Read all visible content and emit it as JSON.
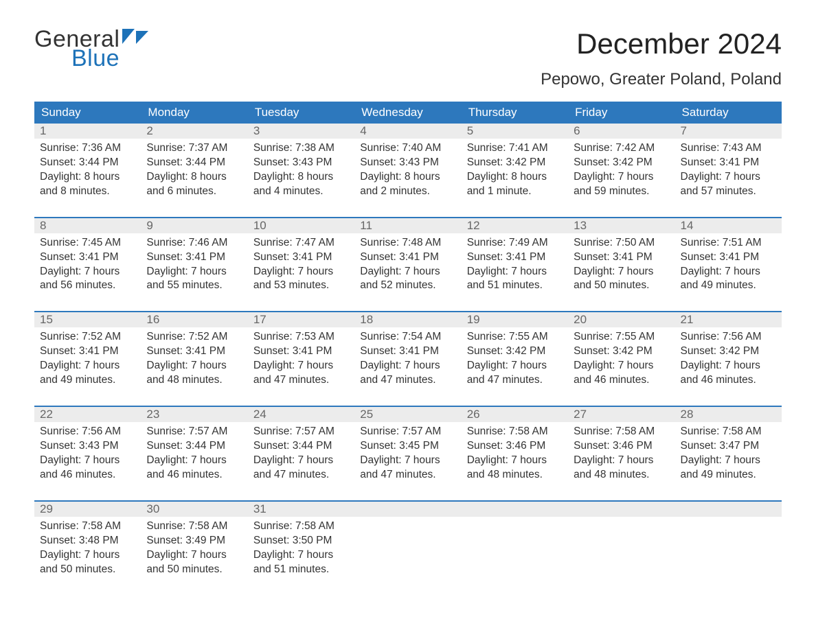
{
  "logo": {
    "text_general": "General",
    "text_blue": "Blue",
    "shape_color": "#1d72b8"
  },
  "title": "December 2024",
  "location": "Pepowo, Greater Poland, Poland",
  "colors": {
    "header_bg": "#2d78bd",
    "header_text": "#ffffff",
    "week_rule": "#2d78bd",
    "daynum_bg": "#ececec",
    "daynum_text": "#666666",
    "body_text": "#333333",
    "page_bg": "#ffffff"
  },
  "typography": {
    "title_fontsize": 42,
    "location_fontsize": 24,
    "dow_fontsize": 17,
    "daynum_fontsize": 17,
    "body_fontsize": 15.5
  },
  "days_of_week": [
    "Sunday",
    "Monday",
    "Tuesday",
    "Wednesday",
    "Thursday",
    "Friday",
    "Saturday"
  ],
  "weeks": [
    [
      {
        "n": "1",
        "sr": "Sunrise: 7:36 AM",
        "ss": "Sunset: 3:44 PM",
        "d1": "Daylight: 8 hours",
        "d2": "and 8 minutes."
      },
      {
        "n": "2",
        "sr": "Sunrise: 7:37 AM",
        "ss": "Sunset: 3:44 PM",
        "d1": "Daylight: 8 hours",
        "d2": "and 6 minutes."
      },
      {
        "n": "3",
        "sr": "Sunrise: 7:38 AM",
        "ss": "Sunset: 3:43 PM",
        "d1": "Daylight: 8 hours",
        "d2": "and 4 minutes."
      },
      {
        "n": "4",
        "sr": "Sunrise: 7:40 AM",
        "ss": "Sunset: 3:43 PM",
        "d1": "Daylight: 8 hours",
        "d2": "and 2 minutes."
      },
      {
        "n": "5",
        "sr": "Sunrise: 7:41 AM",
        "ss": "Sunset: 3:42 PM",
        "d1": "Daylight: 8 hours",
        "d2": "and 1 minute."
      },
      {
        "n": "6",
        "sr": "Sunrise: 7:42 AM",
        "ss": "Sunset: 3:42 PM",
        "d1": "Daylight: 7 hours",
        "d2": "and 59 minutes."
      },
      {
        "n": "7",
        "sr": "Sunrise: 7:43 AM",
        "ss": "Sunset: 3:41 PM",
        "d1": "Daylight: 7 hours",
        "d2": "and 57 minutes."
      }
    ],
    [
      {
        "n": "8",
        "sr": "Sunrise: 7:45 AM",
        "ss": "Sunset: 3:41 PM",
        "d1": "Daylight: 7 hours",
        "d2": "and 56 minutes."
      },
      {
        "n": "9",
        "sr": "Sunrise: 7:46 AM",
        "ss": "Sunset: 3:41 PM",
        "d1": "Daylight: 7 hours",
        "d2": "and 55 minutes."
      },
      {
        "n": "10",
        "sr": "Sunrise: 7:47 AM",
        "ss": "Sunset: 3:41 PM",
        "d1": "Daylight: 7 hours",
        "d2": "and 53 minutes."
      },
      {
        "n": "11",
        "sr": "Sunrise: 7:48 AM",
        "ss": "Sunset: 3:41 PM",
        "d1": "Daylight: 7 hours",
        "d2": "and 52 minutes."
      },
      {
        "n": "12",
        "sr": "Sunrise: 7:49 AM",
        "ss": "Sunset: 3:41 PM",
        "d1": "Daylight: 7 hours",
        "d2": "and 51 minutes."
      },
      {
        "n": "13",
        "sr": "Sunrise: 7:50 AM",
        "ss": "Sunset: 3:41 PM",
        "d1": "Daylight: 7 hours",
        "d2": "and 50 minutes."
      },
      {
        "n": "14",
        "sr": "Sunrise: 7:51 AM",
        "ss": "Sunset: 3:41 PM",
        "d1": "Daylight: 7 hours",
        "d2": "and 49 minutes."
      }
    ],
    [
      {
        "n": "15",
        "sr": "Sunrise: 7:52 AM",
        "ss": "Sunset: 3:41 PM",
        "d1": "Daylight: 7 hours",
        "d2": "and 49 minutes."
      },
      {
        "n": "16",
        "sr": "Sunrise: 7:52 AM",
        "ss": "Sunset: 3:41 PM",
        "d1": "Daylight: 7 hours",
        "d2": "and 48 minutes."
      },
      {
        "n": "17",
        "sr": "Sunrise: 7:53 AM",
        "ss": "Sunset: 3:41 PM",
        "d1": "Daylight: 7 hours",
        "d2": "and 47 minutes."
      },
      {
        "n": "18",
        "sr": "Sunrise: 7:54 AM",
        "ss": "Sunset: 3:41 PM",
        "d1": "Daylight: 7 hours",
        "d2": "and 47 minutes."
      },
      {
        "n": "19",
        "sr": "Sunrise: 7:55 AM",
        "ss": "Sunset: 3:42 PM",
        "d1": "Daylight: 7 hours",
        "d2": "and 47 minutes."
      },
      {
        "n": "20",
        "sr": "Sunrise: 7:55 AM",
        "ss": "Sunset: 3:42 PM",
        "d1": "Daylight: 7 hours",
        "d2": "and 46 minutes."
      },
      {
        "n": "21",
        "sr": "Sunrise: 7:56 AM",
        "ss": "Sunset: 3:42 PM",
        "d1": "Daylight: 7 hours",
        "d2": "and 46 minutes."
      }
    ],
    [
      {
        "n": "22",
        "sr": "Sunrise: 7:56 AM",
        "ss": "Sunset: 3:43 PM",
        "d1": "Daylight: 7 hours",
        "d2": "and 46 minutes."
      },
      {
        "n": "23",
        "sr": "Sunrise: 7:57 AM",
        "ss": "Sunset: 3:44 PM",
        "d1": "Daylight: 7 hours",
        "d2": "and 46 minutes."
      },
      {
        "n": "24",
        "sr": "Sunrise: 7:57 AM",
        "ss": "Sunset: 3:44 PM",
        "d1": "Daylight: 7 hours",
        "d2": "and 47 minutes."
      },
      {
        "n": "25",
        "sr": "Sunrise: 7:57 AM",
        "ss": "Sunset: 3:45 PM",
        "d1": "Daylight: 7 hours",
        "d2": "and 47 minutes."
      },
      {
        "n": "26",
        "sr": "Sunrise: 7:58 AM",
        "ss": "Sunset: 3:46 PM",
        "d1": "Daylight: 7 hours",
        "d2": "and 48 minutes."
      },
      {
        "n": "27",
        "sr": "Sunrise: 7:58 AM",
        "ss": "Sunset: 3:46 PM",
        "d1": "Daylight: 7 hours",
        "d2": "and 48 minutes."
      },
      {
        "n": "28",
        "sr": "Sunrise: 7:58 AM",
        "ss": "Sunset: 3:47 PM",
        "d1": "Daylight: 7 hours",
        "d2": "and 49 minutes."
      }
    ],
    [
      {
        "n": "29",
        "sr": "Sunrise: 7:58 AM",
        "ss": "Sunset: 3:48 PM",
        "d1": "Daylight: 7 hours",
        "d2": "and 50 minutes."
      },
      {
        "n": "30",
        "sr": "Sunrise: 7:58 AM",
        "ss": "Sunset: 3:49 PM",
        "d1": "Daylight: 7 hours",
        "d2": "and 50 minutes."
      },
      {
        "n": "31",
        "sr": "Sunrise: 7:58 AM",
        "ss": "Sunset: 3:50 PM",
        "d1": "Daylight: 7 hours",
        "d2": "and 51 minutes."
      },
      {
        "n": "",
        "sr": "",
        "ss": "",
        "d1": "",
        "d2": ""
      },
      {
        "n": "",
        "sr": "",
        "ss": "",
        "d1": "",
        "d2": ""
      },
      {
        "n": "",
        "sr": "",
        "ss": "",
        "d1": "",
        "d2": ""
      },
      {
        "n": "",
        "sr": "",
        "ss": "",
        "d1": "",
        "d2": ""
      }
    ]
  ]
}
